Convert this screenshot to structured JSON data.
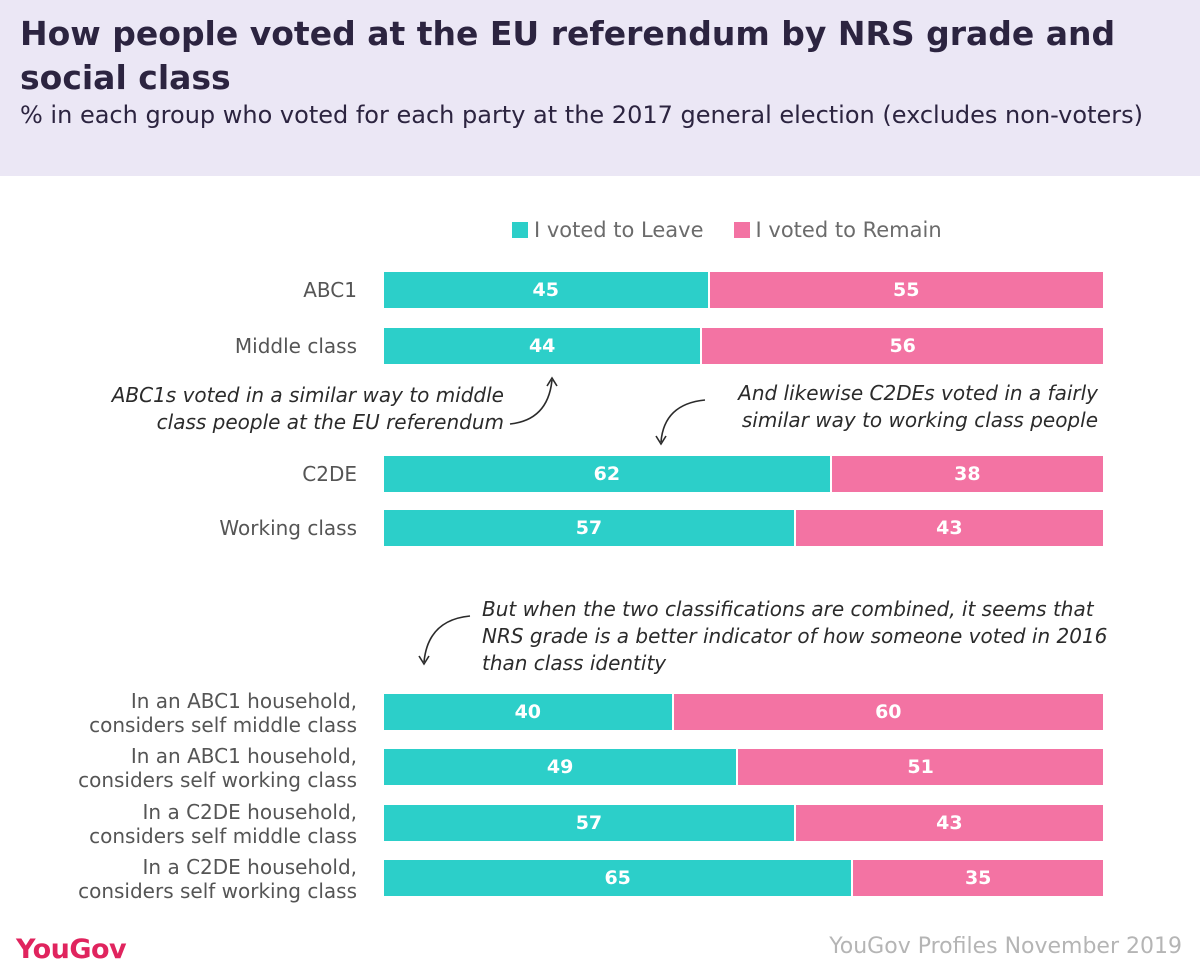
{
  "title": "How people voted at the EU referendum by NRS grade and social class",
  "subtitle": "% in each group who voted for each party at the 2017 general election (excludes non-voters)",
  "legend": {
    "leave_label": "I voted to Leave",
    "remain_label": "I voted to Remain"
  },
  "colors": {
    "leave": "#2ccfc9",
    "remain": "#f373a3"
  },
  "chart_data": {
    "type": "bar",
    "orientation": "horizontal",
    "stacked": true,
    "categories": [
      "ABC1",
      "Middle class",
      "C2DE",
      "Working class",
      "In an ABC1 household,\nconsiders self middle class",
      "In an ABC1 household,\nconsiders self working class",
      "In a C2DE household,\nconsiders self middle class",
      "In a C2DE household,\nconsiders self working class"
    ],
    "series": [
      {
        "name": "I voted to Leave",
        "values": [
          45,
          44,
          62,
          57,
          40,
          49,
          57,
          65
        ]
      },
      {
        "name": "I voted to Remain",
        "values": [
          55,
          56,
          38,
          43,
          60,
          51,
          43,
          35
        ]
      }
    ],
    "xlim": [
      0,
      100
    ],
    "legend_position": "top",
    "annotations": [
      "ABC1s voted in a similar way to middle\nclass people at the EU referendum",
      "And likewise C2DEs voted in a fairly\nsimilar way to working class people",
      "But when the two classifications are combined, it seems that\nNRS grade is a better indicator of how someone voted in 2016\nthan class identity"
    ]
  },
  "footer": {
    "brand": "YouGov",
    "source": "YouGov Profiles November 2019"
  }
}
